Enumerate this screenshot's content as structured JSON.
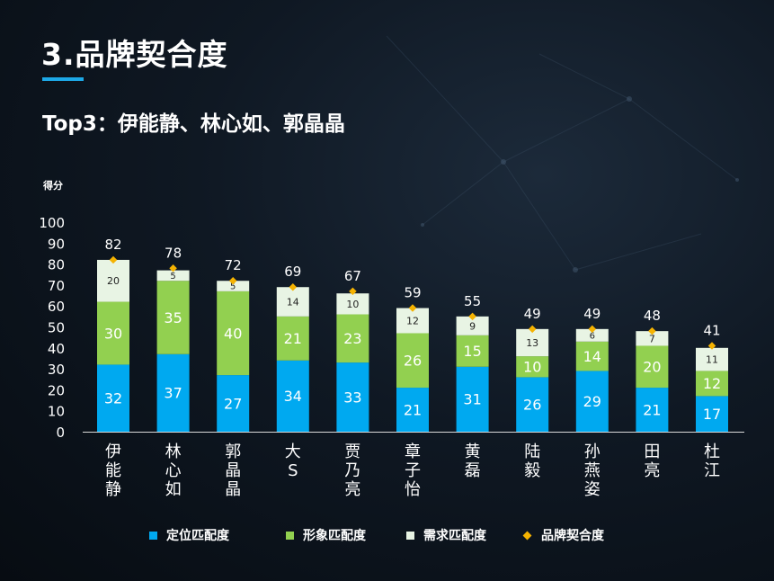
{
  "page": {
    "title": "3.品牌契合度",
    "subtitle": "Top3：伊能静、林心如、郭晶晶"
  },
  "colors": {
    "positioning": "#00a9f0",
    "image": "#92d050",
    "demand": "#e8f4e4",
    "brand": "#f5b301"
  },
  "chart_data": {
    "type": "bar",
    "stacked": true,
    "ylabel": "得分",
    "ylim": [
      0,
      100
    ],
    "yticks": [
      0,
      10,
      20,
      30,
      40,
      50,
      60,
      70,
      80,
      90,
      100
    ],
    "categories": [
      "伊能静",
      "林心如",
      "郭晶晶",
      "大S",
      "贾乃亮",
      "章子怡",
      "黄磊",
      "陆毅",
      "孙燕姿",
      "田亮",
      "杜江"
    ],
    "series": [
      {
        "name": "定位匹配度",
        "color_key": "positioning",
        "values": [
          32,
          37,
          27,
          34,
          33,
          21,
          31,
          26,
          29,
          21,
          17
        ]
      },
      {
        "name": "形象匹配度",
        "color_key": "image",
        "values": [
          30,
          35,
          40,
          21,
          23,
          26,
          15,
          10,
          14,
          20,
          12
        ]
      },
      {
        "name": "需求匹配度",
        "color_key": "demand",
        "values": [
          20,
          5,
          5,
          14,
          10,
          12,
          9,
          13,
          6,
          7,
          11
        ]
      }
    ],
    "line_series": {
      "name": "品牌契合度",
      "color_key": "brand",
      "values": [
        82,
        78,
        72,
        69,
        67,
        59,
        55,
        49,
        49,
        48,
        41
      ]
    },
    "legend_position": "bottom"
  }
}
